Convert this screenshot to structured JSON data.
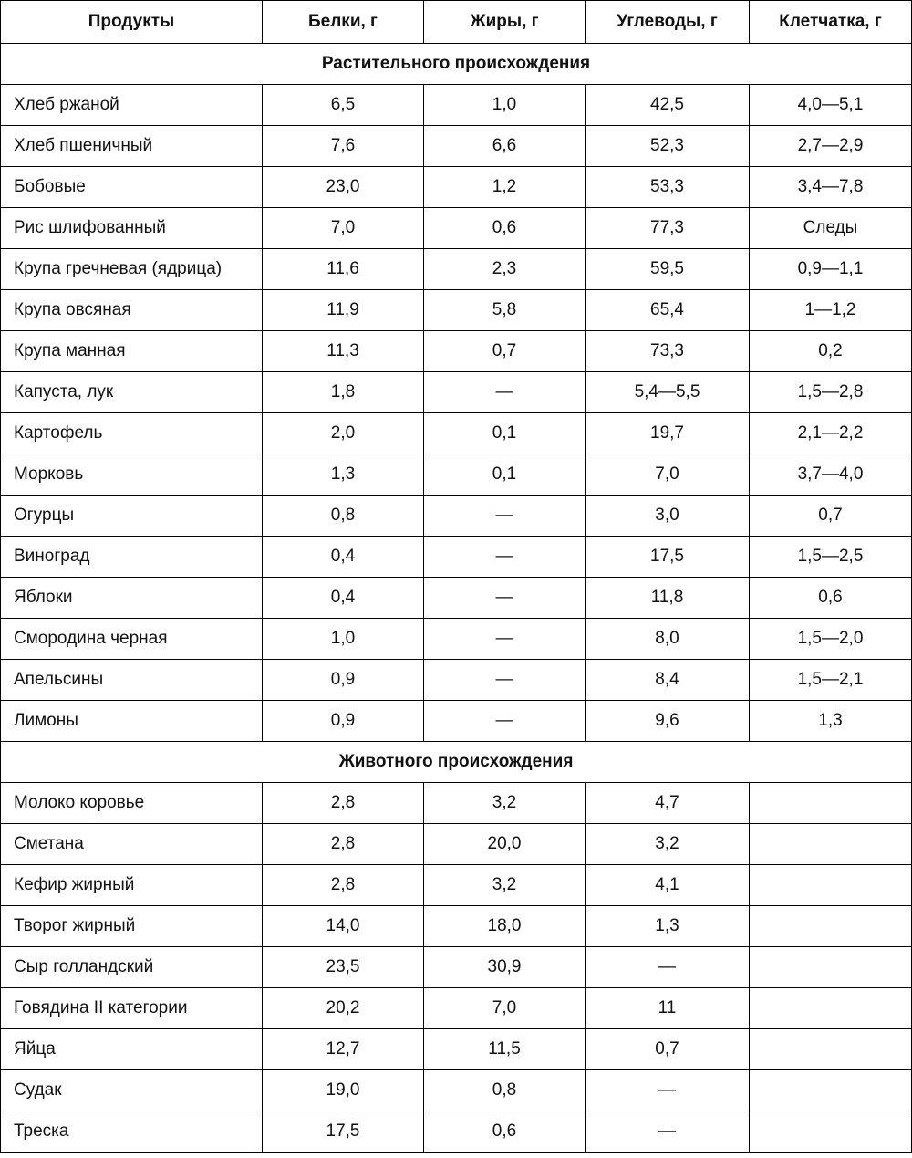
{
  "table": {
    "headers": [
      "Продукты",
      "Белки, г",
      "Жиры, г",
      "Углеводы, г",
      "Клетчатка, г"
    ],
    "sections": [
      {
        "title": "Растительного происхождения",
        "rows": [
          [
            "Хлеб ржаной",
            "6,5",
            "1,0",
            "42,5",
            "4,0—5,1"
          ],
          [
            "Хлеб пшеничный",
            "7,6",
            "6,6",
            "52,3",
            "2,7—2,9"
          ],
          [
            "Бобовые",
            "23,0",
            "1,2",
            "53,3",
            "3,4—7,8"
          ],
          [
            "Рис шлифованный",
            "7,0",
            "0,6",
            "77,3",
            "Следы"
          ],
          [
            "Крупа гречневая (ядрица)",
            "11,6",
            "2,3",
            "59,5",
            "0,9—1,1"
          ],
          [
            "Крупа овсяная",
            "11,9",
            "5,8",
            "65,4",
            "1—1,2"
          ],
          [
            "Крупа манная",
            "11,3",
            "0,7",
            "73,3",
            "0,2"
          ],
          [
            "Капуста, лук",
            "1,8",
            "—",
            "5,4—5,5",
            "1,5—2,8"
          ],
          [
            "Картофель",
            "2,0",
            "0,1",
            "19,7",
            "2,1—2,2"
          ],
          [
            "Морковь",
            "1,3",
            "0,1",
            "7,0",
            "3,7—4,0"
          ],
          [
            "Огурцы",
            "0,8",
            "—",
            "3,0",
            "0,7"
          ],
          [
            "Виноград",
            "0,4",
            "—",
            "17,5",
            "1,5—2,5"
          ],
          [
            "Яблоки",
            "0,4",
            "—",
            "11,8",
            "0,6"
          ],
          [
            "Смородина черная",
            "1,0",
            "—",
            "8,0",
            "1,5—2,0"
          ],
          [
            "Апельсины",
            "0,9",
            "—",
            "8,4",
            "1,5—2,1"
          ],
          [
            "Лимоны",
            "0,9",
            "—",
            "9,6",
            "1,3"
          ]
        ]
      },
      {
        "title": "Животного происхождения",
        "rows": [
          [
            "Молоко коровье",
            "2,8",
            "3,2",
            "4,7",
            ""
          ],
          [
            "Сметана",
            "2,8",
            "20,0",
            "3,2",
            ""
          ],
          [
            "Кефир жирный",
            "2,8",
            "3,2",
            "4,1",
            ""
          ],
          [
            "Творог жирный",
            "14,0",
            "18,0",
            "1,3",
            ""
          ],
          [
            "Сыр голландский",
            "23,5",
            "30,9",
            "—",
            ""
          ],
          [
            "Говядина II категории",
            "20,2",
            "7,0",
            "11",
            ""
          ],
          [
            "Яйца",
            "12,7",
            "11,5",
            "0,7",
            ""
          ],
          [
            "Судак",
            "19,0",
            "0,8",
            "—",
            ""
          ],
          [
            "Треска",
            "17,5",
            "0,6",
            "—",
            ""
          ]
        ]
      }
    ]
  }
}
